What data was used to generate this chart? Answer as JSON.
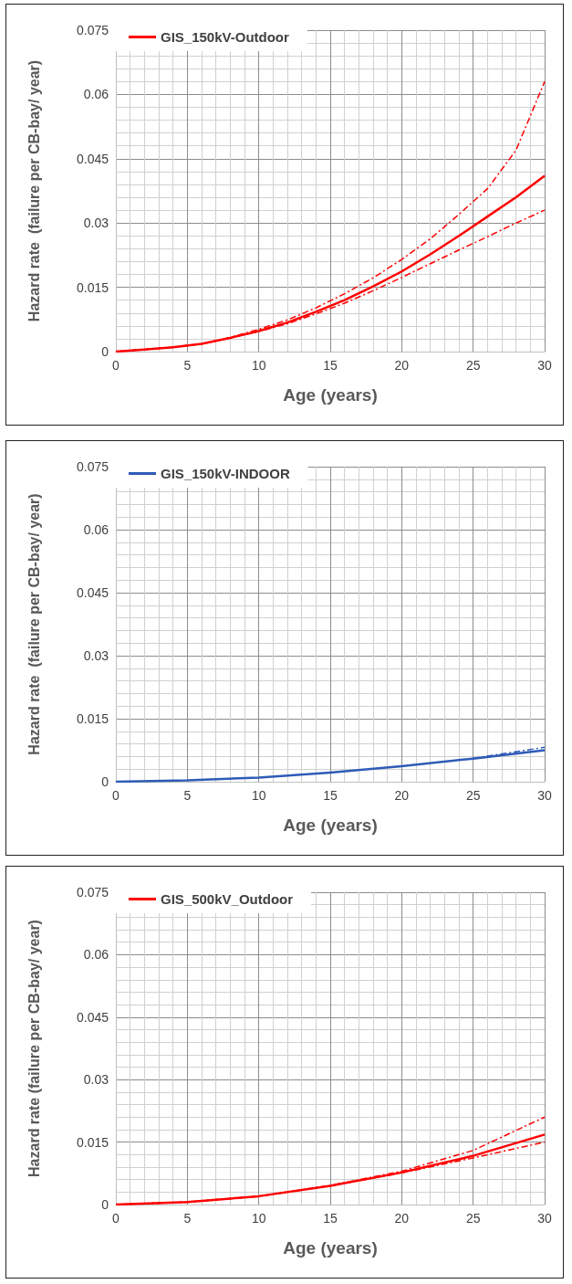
{
  "chart_data": [
    {
      "type": "line",
      "xlabel": "Age (years)",
      "ylabel": "Hazard rate  (failure per CB-bay/ year)",
      "xlim": [
        0,
        30
      ],
      "ylim": [
        0,
        0.075
      ],
      "xticks": [
        0,
        5,
        10,
        15,
        20,
        25,
        30
      ],
      "yticks": [
        0,
        0.015,
        0.03,
        0.045,
        0.06,
        0.075
      ],
      "grid": true,
      "legend": "top left",
      "marker": "none",
      "x": [
        0,
        2,
        4,
        6,
        8,
        10,
        12,
        14,
        16,
        18,
        20,
        22,
        24,
        26,
        28,
        30
      ],
      "series": [
        {
          "name": "GIS_150kV-Outdoor",
          "color": "#ff0000",
          "line_style": "solid",
          "values": [
            0,
            0.0005,
            0.001,
            0.0018,
            0.0032,
            0.0048,
            0.0068,
            0.0093,
            0.012,
            0.0152,
            0.0187,
            0.0227,
            0.027,
            0.0315,
            0.036,
            0.041
          ]
        },
        {
          "color": "#ff0000",
          "line_style": "dashed",
          "values": [
            0,
            0.0005,
            0.001,
            0.0018,
            0.0033,
            0.0052,
            0.0074,
            0.0102,
            0.0135,
            0.0172,
            0.0215,
            0.0263,
            0.032,
            0.038,
            0.047,
            0.063
          ]
        },
        {
          "color": "#ff0000",
          "line_style": "dashed",
          "values": [
            0,
            0.0005,
            0.001,
            0.0018,
            0.0032,
            0.0047,
            0.0065,
            0.0088,
            0.0113,
            0.0142,
            0.0173,
            0.0205,
            0.0237,
            0.0268,
            0.03,
            0.033
          ]
        }
      ]
    },
    {
      "type": "line",
      "xlabel": "Age (years)",
      "ylabel": "Hazard rate  (failure per CB-bay/ year)",
      "xlim": [
        0,
        30
      ],
      "ylim": [
        0,
        0.075
      ],
      "xticks": [
        0,
        5,
        10,
        15,
        20,
        25,
        30
      ],
      "yticks": [
        0,
        0.015,
        0.03,
        0.045,
        0.06,
        0.075
      ],
      "grid": true,
      "legend": "top left",
      "marker": "none",
      "x": [
        0,
        5,
        10,
        15,
        20,
        25,
        30
      ],
      "series": [
        {
          "name": "GIS_150kV-INDOOR",
          "color": "#2f5bb7",
          "line_style": "solid",
          "values": [
            0,
            0.0003,
            0.001,
            0.0022,
            0.0037,
            0.0055,
            0.0075
          ]
        },
        {
          "color": "#2f5bb7",
          "line_style": "dashed",
          "values": [
            null,
            null,
            null,
            null,
            null,
            0.0056,
            0.0082
          ]
        }
      ]
    },
    {
      "type": "line",
      "xlabel": "Age (years)",
      "ylabel": "Hazard rate (failure per CB-bay/ year)",
      "xlim": [
        0,
        30
      ],
      "ylim": [
        0,
        0.075
      ],
      "xticks": [
        0,
        5,
        10,
        15,
        20,
        25,
        30
      ],
      "yticks": [
        0,
        0.015,
        0.03,
        0.045,
        0.06,
        0.075
      ],
      "grid": true,
      "legend": "top left",
      "marker": "none",
      "x": [
        0,
        5,
        10,
        15,
        20,
        25,
        30
      ],
      "series": [
        {
          "name": "GIS_500kV_Outdoor",
          "color": "#ff0000",
          "line_style": "solid",
          "values": [
            0,
            0.0006,
            0.002,
            0.0045,
            0.0077,
            0.0117,
            0.0168
          ]
        },
        {
          "color": "#ff0000",
          "line_style": "dashed",
          "values": [
            0,
            0.0006,
            0.002,
            0.0046,
            0.008,
            0.013,
            0.021
          ]
        },
        {
          "color": "#ff0000",
          "line_style": "dashed",
          "values": [
            0,
            0.0006,
            0.002,
            0.0045,
            0.0076,
            0.0112,
            0.015
          ]
        }
      ]
    }
  ]
}
